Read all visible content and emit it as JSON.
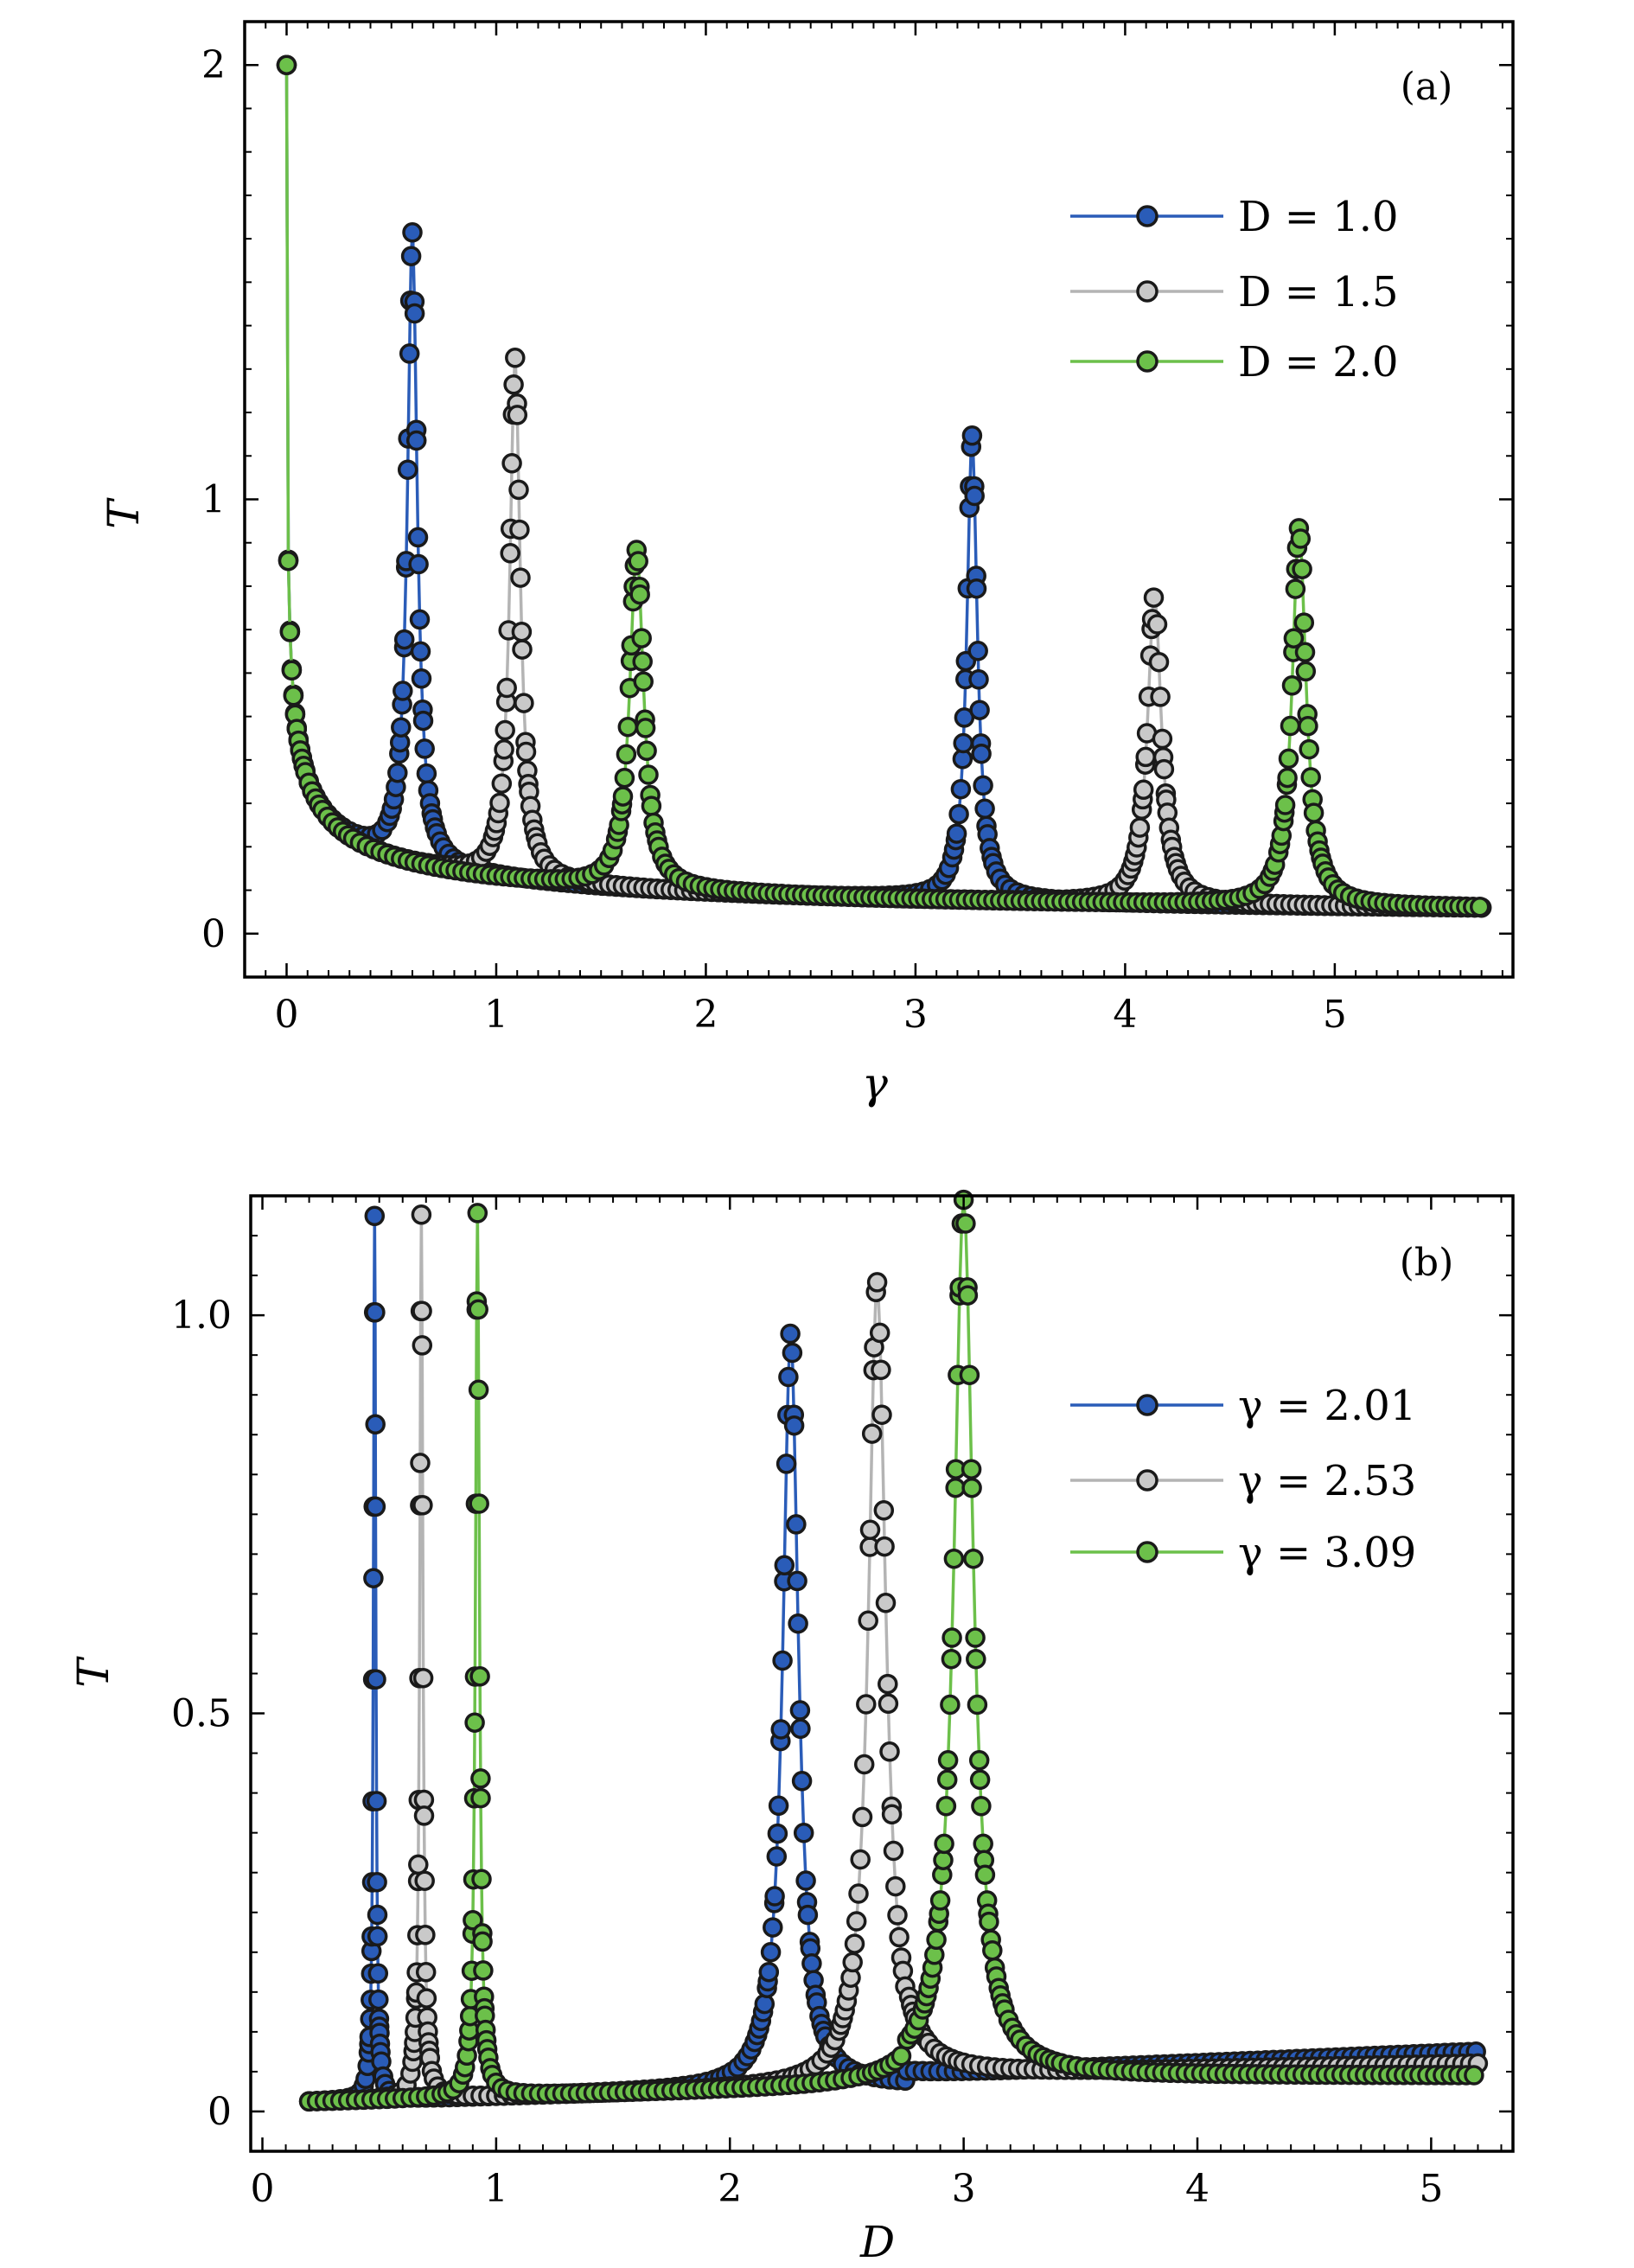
{
  "chart_data": [
    {
      "panel": "(a)",
      "type": "line",
      "xlabel": "γ",
      "ylabel": "T",
      "xlim": [
        -0.2,
        5.85
      ],
      "ylim": [
        -0.1,
        2.1
      ],
      "xticks": [
        0,
        1,
        2,
        3,
        4,
        5
      ],
      "yticks": [
        0,
        1,
        2
      ],
      "ytick_labels": [
        "0",
        "1",
        "2"
      ],
      "legend_position": "upper-right",
      "series": [
        {
          "name": "D = 1.0",
          "color": "#2a5cb8",
          "marker_fill": "#2a5cb8",
          "peaks": [
            {
              "x": 0.6,
              "y": 1.45,
              "width": 0.028
            },
            {
              "x": 3.27,
              "y": 1.07,
              "width": 0.03
            }
          ]
        },
        {
          "name": "D = 1.5",
          "color": "#b4b4b4",
          "marker_fill": "#c9c9c9",
          "peaks": [
            {
              "x": 1.09,
              "y": 1.2,
              "width": 0.03
            },
            {
              "x": 4.14,
              "y": 0.71,
              "width": 0.04
            }
          ]
        },
        {
          "name": "D = 2.0",
          "color": "#6cc04a",
          "marker_fill": "#6cc04a",
          "peaks": [
            {
              "x": 1.67,
              "y": 0.78,
              "width": 0.04
            },
            {
              "x": 4.83,
              "y": 0.87,
              "width": 0.04
            }
          ]
        }
      ]
    },
    {
      "panel": "(b)",
      "type": "line",
      "xlabel": "D",
      "ylabel": "T",
      "xlim": [
        -0.05,
        5.35
      ],
      "ylim": [
        -0.05,
        1.15
      ],
      "xticks": [
        0,
        1,
        2,
        3,
        4,
        5
      ],
      "yticks": [
        0,
        0.5,
        1.0
      ],
      "ytick_labels": [
        "0",
        "0.5",
        "1.0"
      ],
      "legend_position": "upper-right",
      "series": [
        {
          "name": "γ = 2.01",
          "color": "#2a5cb8",
          "marker_fill": "#2a5cb8",
          "peaks": [
            {
              "x": 0.48,
              "y": 1.11,
              "width": 0.006
            },
            {
              "x": 2.26,
              "y": 0.95,
              "width": 0.04
            }
          ],
          "end_value": 0.075
        },
        {
          "name": "γ = 2.53",
          "color": "#b4b4b4",
          "marker_fill": "#c9c9c9",
          "peaks": [
            {
              "x": 0.68,
              "y": 1.11,
              "width": 0.008
            },
            {
              "x": 2.63,
              "y": 1.01,
              "width": 0.045
            }
          ],
          "end_value": 0.06
        },
        {
          "name": "γ = 3.09",
          "color": "#6cc04a",
          "marker_fill": "#6cc04a",
          "peaks": [
            {
              "x": 0.92,
              "y": 1.11,
              "width": 0.01
            },
            {
              "x": 3.0,
              "y": 1.1,
              "width": 0.05
            }
          ],
          "end_value": 0.045
        }
      ]
    }
  ]
}
